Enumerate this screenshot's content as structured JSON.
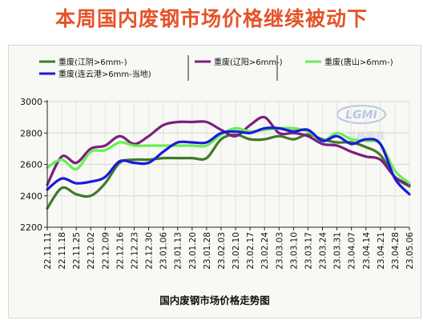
{
  "headline": "本周国内废钢市场价格继续被动下",
  "chart_data": {
    "type": "line",
    "caption": "国内废钢市场价格走势图",
    "watermark": "LGMI 兰格钢铁",
    "ylim": [
      2200,
      3000
    ],
    "yticks": [
      2200,
      2400,
      2600,
      2800,
      3000
    ],
    "grid": true,
    "legend_position": "top",
    "categories": [
      "22.11.11",
      "22.11.18",
      "22.11.25",
      "22.12.02",
      "22.12.09",
      "22.12.16",
      "22.12.23",
      "22.12.30",
      "23.01.06",
      "23.01.13",
      "23.01.20",
      "23.01.28",
      "23.02.03",
      "23.02.10",
      "23.02.17",
      "23.02.24",
      "23.03.03",
      "23.03.10",
      "23.03.17",
      "23.03.24",
      "23.03.31",
      "23.04.07",
      "23.04.14",
      "23.04.21",
      "23.04.28",
      "23.05.06"
    ],
    "series": [
      {
        "name": "重废(江阴>6mm-)",
        "color": "#3f7a2b",
        "values": [
          2320,
          2450,
          2410,
          2400,
          2480,
          2610,
          2630,
          2630,
          2640,
          2640,
          2640,
          2640,
          2760,
          2790,
          2760,
          2760,
          2780,
          2760,
          2790,
          2760,
          2740,
          2740,
          2710,
          2660,
          2520,
          2460
        ]
      },
      {
        "name": "重废(辽阳>6mm-)",
        "color": "#7b1f7e",
        "values": [
          2470,
          2650,
          2610,
          2700,
          2720,
          2780,
          2730,
          2780,
          2850,
          2870,
          2870,
          2870,
          2820,
          2780,
          2850,
          2900,
          2800,
          2800,
          2780,
          2730,
          2720,
          2680,
          2650,
          2630,
          2520,
          2470
        ]
      },
      {
        "name": "重废(唐山>6mm-)",
        "color": "#66ee55",
        "values": [
          2580,
          2630,
          2570,
          2680,
          2690,
          2740,
          2720,
          2720,
          2720,
          2720,
          2720,
          2720,
          2790,
          2830,
          2810,
          2820,
          2830,
          2830,
          2810,
          2750,
          2800,
          2760,
          2750,
          2730,
          2560,
          2480
        ]
      },
      {
        "name": "重废(连云港>6mm-当地)",
        "color": "#1a1adb",
        "values": [
          2440,
          2510,
          2480,
          2490,
          2520,
          2620,
          2610,
          2610,
          2680,
          2740,
          2740,
          2740,
          2800,
          2810,
          2800,
          2830,
          2830,
          2810,
          2820,
          2750,
          2780,
          2730,
          2760,
          2730,
          2510,
          2410
        ]
      }
    ]
  }
}
